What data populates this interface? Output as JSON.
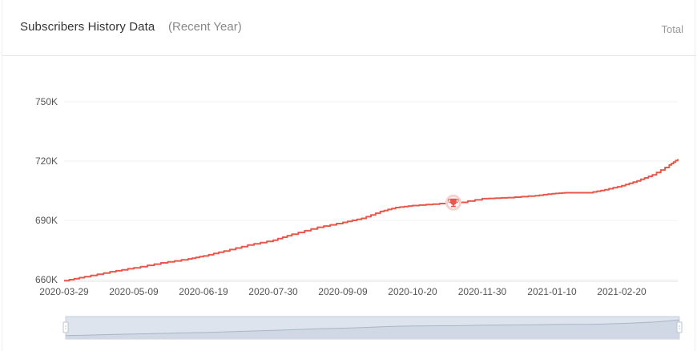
{
  "header": {
    "title": "Subscribers History Data",
    "subtitle": "(Recent Year)",
    "total_label": "Total"
  },
  "colors": {
    "line": "#e8574a",
    "grid": "#f0f0f0",
    "marker_fill": "#e8574a",
    "marker_halo": "#f8d0cc",
    "zoom_fill": "#dde4ee",
    "zoom_border": "#c7d0dc",
    "zoom_handle": "#b8c3d0"
  },
  "chart_data": {
    "type": "line",
    "title": "",
    "xlabel": "",
    "ylabel": "",
    "x_ticks": [
      "2020-03-29",
      "2020-05-09",
      "2020-06-19",
      "2020-07-30",
      "2020-09-09",
      "2020-10-20",
      "2020-11-30",
      "2021-01-10",
      "2021-02-20"
    ],
    "y_ticks": [
      "660K",
      "690K",
      "720K",
      "750K"
    ],
    "ylim": [
      660000,
      750000
    ],
    "xlim": [
      "2020-03-29",
      "2021-03-25"
    ],
    "grid": true,
    "series": [
      {
        "x": [
          "2020-03-29",
          "2020-04-10",
          "2020-04-25",
          "2020-05-09",
          "2020-05-25",
          "2020-06-10",
          "2020-06-19",
          "2020-07-01",
          "2020-07-15",
          "2020-07-30",
          "2020-08-10",
          "2020-08-25",
          "2020-09-09",
          "2020-09-20",
          "2020-10-01",
          "2020-10-10",
          "2020-10-20",
          "2020-11-05",
          "2020-11-13",
          "2020-11-30",
          "2020-12-15",
          "2020-12-31",
          "2021-01-10",
          "2021-01-18",
          "2021-02-01",
          "2021-02-10",
          "2021-02-20",
          "2021-03-01",
          "2021-03-10",
          "2021-03-20",
          "2021-03-25"
        ],
        "values": [
          659500,
          661500,
          664000,
          666000,
          668500,
          670500,
          672000,
          674500,
          677500,
          680000,
          683000,
          686500,
          689000,
          691000,
          694500,
          696500,
          697500,
          698500,
          698500,
          701000,
          701500,
          702500,
          703500,
          704000,
          704000,
          705500,
          707500,
          710000,
          713000,
          718000,
          721000
        ]
      }
    ],
    "annotations": [
      {
        "type": "marker",
        "icon": "trophy-icon",
        "x": "2020-11-13",
        "y": 699000
      }
    ]
  },
  "zoom_slider": {
    "start_percent": 0,
    "end_percent": 100
  }
}
